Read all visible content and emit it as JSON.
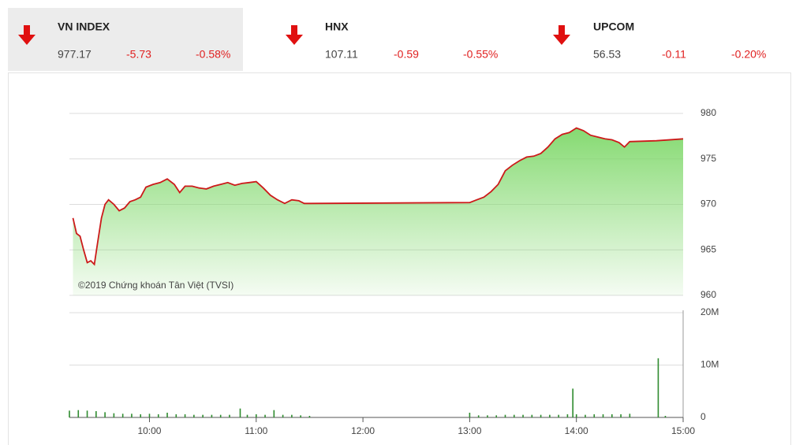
{
  "indices": [
    {
      "name": "VN INDEX",
      "value": "977.17",
      "change": "-5.73",
      "percent": "-0.58%"
    },
    {
      "name": "HNX",
      "value": "107.11",
      "change": "-0.59",
      "percent": "-0.55%"
    },
    {
      "name": "UPCOM",
      "value": "56.53",
      "change": "-0.11",
      "percent": "-0.20%"
    }
  ],
  "chart_data": [
    {
      "type": "line",
      "annotation": "©2019 Chứng khoán Tân Việt (TVSI)",
      "color": "#cc1a1a",
      "fill": "#7fd86a",
      "x": [
        "09:17",
        "09:19",
        "09:21",
        "09:23",
        "09:25",
        "09:27",
        "09:29",
        "09:31",
        "09:33",
        "09:35",
        "09:37",
        "09:40",
        "09:43",
        "09:46",
        "09:49",
        "09:52",
        "09:55",
        "09:58",
        "10:02",
        "10:06",
        "10:10",
        "10:14",
        "10:17",
        "10:20",
        "10:24",
        "10:28",
        "10:32",
        "10:36",
        "10:40",
        "10:44",
        "10:48",
        "10:52",
        "10:56",
        "11:00",
        "11:04",
        "11:08",
        "11:12",
        "11:16",
        "11:20",
        "11:24",
        "11:27",
        "11:30",
        "13:00",
        "13:04",
        "13:08",
        "13:12",
        "13:16",
        "13:20",
        "13:24",
        "13:28",
        "13:32",
        "13:36",
        "13:40",
        "13:44",
        "13:48",
        "13:52",
        "13:56",
        "14:00",
        "14:04",
        "14:08",
        "14:12",
        "14:16",
        "14:20",
        "14:24",
        "14:27",
        "14:30",
        "14:45",
        "15:00"
      ],
      "values": [
        968.5,
        966.8,
        966.5,
        965.0,
        963.6,
        963.8,
        963.4,
        966.0,
        968.5,
        970.0,
        970.5,
        970.0,
        969.3,
        969.6,
        970.3,
        970.5,
        970.8,
        971.9,
        972.2,
        972.4,
        972.8,
        972.2,
        971.3,
        972.0,
        972.0,
        971.8,
        971.7,
        972.0,
        972.2,
        972.4,
        972.1,
        972.3,
        972.4,
        972.5,
        971.8,
        971.0,
        970.5,
        970.1,
        970.5,
        970.4,
        970.1,
        970.1,
        970.2,
        970.5,
        970.8,
        971.4,
        972.2,
        973.7,
        974.3,
        974.8,
        975.2,
        975.3,
        975.6,
        976.3,
        977.2,
        977.7,
        977.9,
        978.4,
        978.1,
        977.6,
        977.4,
        977.2,
        977.1,
        976.8,
        976.3,
        976.9,
        977.0,
        977.2
      ],
      "xlim": [
        "09:15",
        "15:00"
      ],
      "ylim": [
        960,
        980
      ],
      "yticks": [
        960,
        965,
        970,
        975,
        980
      ],
      "grid": true
    },
    {
      "type": "bar",
      "color": "#2e8b2e",
      "x": [
        "09:15",
        "09:20",
        "09:25",
        "09:30",
        "09:35",
        "09:40",
        "09:45",
        "09:50",
        "09:55",
        "10:00",
        "10:05",
        "10:10",
        "10:15",
        "10:20",
        "10:25",
        "10:30",
        "10:35",
        "10:40",
        "10:45",
        "10:51",
        "10:55",
        "11:00",
        "11:05",
        "11:10",
        "11:15",
        "11:20",
        "11:25",
        "11:30",
        "13:00",
        "13:05",
        "13:10",
        "13:15",
        "13:20",
        "13:25",
        "13:30",
        "13:35",
        "13:40",
        "13:45",
        "13:50",
        "13:55",
        "13:58",
        "14:00",
        "14:05",
        "14:10",
        "14:15",
        "14:20",
        "14:25",
        "14:30",
        "14:46",
        "14:50"
      ],
      "values": [
        1300000,
        1400000,
        1300000,
        1200000,
        1000000,
        800000,
        700000,
        700000,
        600000,
        700000,
        600000,
        900000,
        600000,
        600000,
        500000,
        500000,
        500000,
        500000,
        500000,
        1700000,
        500000,
        600000,
        500000,
        1400000,
        500000,
        500000,
        400000,
        300000,
        900000,
        400000,
        400000,
        400000,
        500000,
        500000,
        500000,
        500000,
        500000,
        500000,
        500000,
        600000,
        5500000,
        600000,
        500000,
        600000,
        600000,
        600000,
        600000,
        700000,
        11300000,
        300000
      ],
      "xlim": [
        "09:15",
        "15:00"
      ],
      "xticks": [
        "10:00",
        "11:00",
        "12:00",
        "13:00",
        "14:00",
        "15:00"
      ],
      "ylim": [
        0,
        20000000
      ],
      "yticks": [
        {
          "value": 0,
          "label": "0"
        },
        {
          "value": 10000000,
          "label": "10M"
        },
        {
          "value": 20000000,
          "label": "20M"
        }
      ],
      "grid": true
    }
  ]
}
